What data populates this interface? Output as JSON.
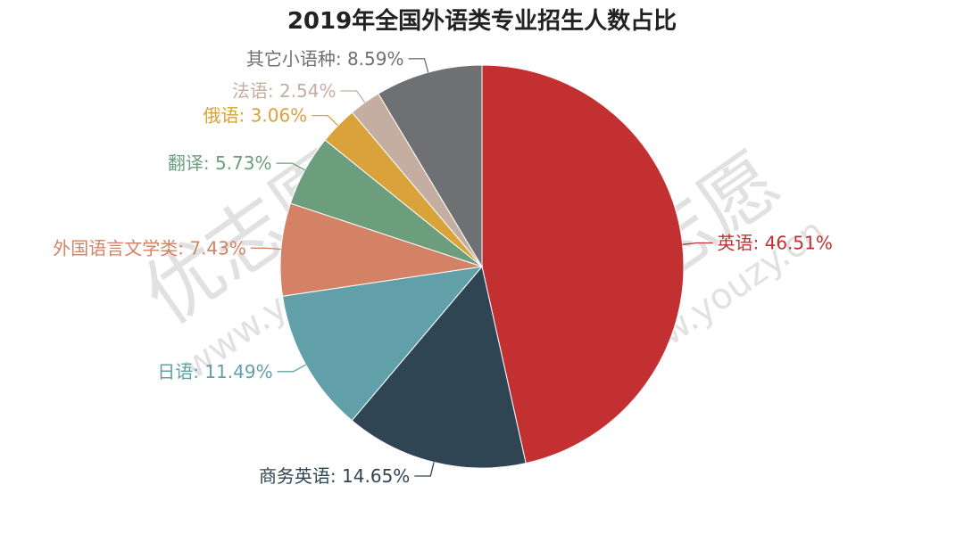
{
  "watermark": {
    "brand": "优志愿",
    "url": "www.youzy.cn"
  },
  "chart_data": {
    "type": "pie",
    "title": "2019年全国外语类专业招生人数占比",
    "unit": "%",
    "slices": [
      {
        "label": "英语",
        "value": 46.51,
        "color": "#c23032"
      },
      {
        "label": "商务英语",
        "value": 14.65,
        "color": "#2f4554"
      },
      {
        "label": "日语",
        "value": 11.49,
        "color": "#61a0a8"
      },
      {
        "label": "外国语言文学类",
        "value": 7.43,
        "color": "#d48265"
      },
      {
        "label": "翻译",
        "value": 5.73,
        "color": "#6c9e7e"
      },
      {
        "label": "俄语",
        "value": 3.06,
        "color": "#d9a23a"
      },
      {
        "label": "法语",
        "value": 2.54,
        "color": "#c4aea2"
      },
      {
        "label": "其它小语种",
        "value": 8.59,
        "color": "#6f7074"
      }
    ]
  }
}
